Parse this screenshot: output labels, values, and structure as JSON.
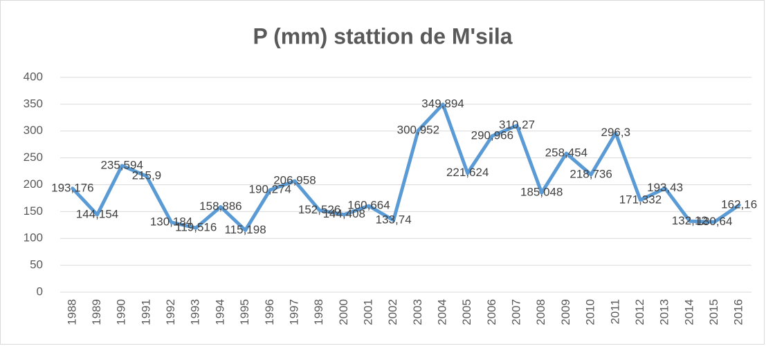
{
  "chart_data": {
    "type": "line",
    "title": "P (mm) stattion de M'sila",
    "categories": [
      "1988",
      "1989",
      "1990",
      "1991",
      "1992",
      "1993",
      "1994",
      "1995",
      "1996",
      "1997",
      "1998",
      "2000",
      "2001",
      "2002",
      "2003",
      "2004",
      "2005",
      "2006",
      "2007",
      "2008",
      "2009",
      "2010",
      "2011",
      "2012",
      "2013",
      "2014",
      "2015",
      "2016"
    ],
    "series": [
      {
        "name": "P (mm)",
        "color": "#5b9bd5",
        "values": [
          193.176,
          144.154,
          235.594,
          215.9,
          130.184,
          119.516,
          158.886,
          115.198,
          190.274,
          206.958,
          152.526,
          144.408,
          160.664,
          133.74,
          300.952,
          349.894,
          221.624,
          290.966,
          310.27,
          185.048,
          258.454,
          218.736,
          296.3,
          171.332,
          193.43,
          132.12,
          130.64,
          162.16
        ],
        "value_labels": [
          "193,176",
          "144,154",
          "235,594",
          "215,9",
          "130,184",
          "119,516",
          "158,886",
          "115,198",
          "190,274",
          "206,958",
          "152,526",
          "144,408",
          "160,664",
          "133,74",
          "300,952",
          "349,894",
          "221,624",
          "290,966",
          "310,27",
          "185,048",
          "258,454",
          "218,736",
          "296,3",
          "171,332",
          "193,43",
          "132,12",
          "130,64",
          "162,16"
        ]
      }
    ],
    "ylim": [
      0,
      400
    ],
    "yticks": [
      0,
      50,
      100,
      150,
      200,
      250,
      300,
      350,
      400
    ],
    "grid": true
  }
}
